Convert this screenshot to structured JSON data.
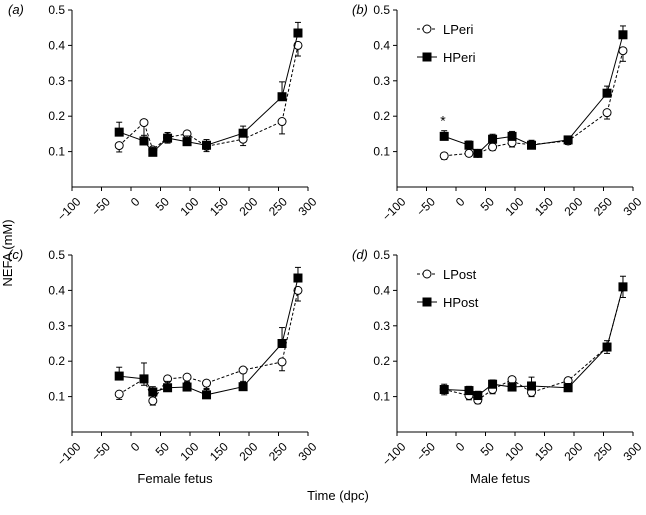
{
  "figure": {
    "ylabel": "NEFA (mM)",
    "xlabel": "Time (dpc)",
    "column_labels": [
      "Female fetus",
      "Male fetus"
    ]
  },
  "chart_data": [
    {
      "type": "line",
      "panel": "(a)",
      "ylim": [
        0,
        0.5
      ],
      "xlim": [
        -100,
        300
      ],
      "xticks": [
        -100,
        -50,
        0,
        50,
        100,
        150,
        200,
        250,
        300
      ],
      "yticks": [
        0.1,
        0.2,
        0.3,
        0.4,
        0.5
      ],
      "legend": null,
      "series": [
        {
          "marker": "open-circle",
          "dashed": true,
          "x": [
            -20,
            22,
            37,
            62,
            95,
            128,
            190,
            256,
            283
          ],
          "y": [
            0.117,
            0.182,
            0.105,
            0.14,
            0.15,
            0.115,
            0.135,
            0.185,
            0.4
          ],
          "err": [
            0.018,
            0.045,
            0.015,
            0.016,
            0.015,
            0.015,
            0.018,
            0.035,
            0.03
          ]
        },
        {
          "marker": "filled-square",
          "dashed": false,
          "x": [
            -20,
            22,
            37,
            62,
            95,
            128,
            190,
            256,
            283
          ],
          "y": [
            0.155,
            0.13,
            0.098,
            0.138,
            0.128,
            0.118,
            0.152,
            0.255,
            0.435
          ],
          "err": [
            0.028,
            0.016,
            0.014,
            0.016,
            0.016,
            0.016,
            0.02,
            0.042,
            0.03
          ]
        }
      ]
    },
    {
      "type": "line",
      "panel": "(b)",
      "ylim": [
        0,
        0.5
      ],
      "xlim": [
        -100,
        300
      ],
      "xticks": [
        -100,
        -50,
        0,
        50,
        100,
        150,
        200,
        250,
        300
      ],
      "yticks": [
        0.1,
        0.2,
        0.3,
        0.4,
        0.5
      ],
      "legend": [
        "LPeri",
        "HPeri"
      ],
      "annotation": {
        "text": "*",
        "x": -22,
        "y": 0.19
      },
      "series": [
        {
          "name": "LPeri",
          "marker": "open-circle",
          "dashed": true,
          "x": [
            -20,
            22,
            37,
            62,
            95,
            128,
            190,
            256,
            283
          ],
          "y": [
            0.088,
            0.095,
            0.095,
            0.113,
            0.125,
            0.12,
            0.13,
            0.21,
            0.385
          ],
          "err": [
            0.01,
            0.008,
            0.008,
            0.01,
            0.012,
            0.012,
            0.01,
            0.018,
            0.03
          ]
        },
        {
          "name": "HPeri",
          "marker": "filled-square",
          "dashed": false,
          "x": [
            -20,
            22,
            37,
            62,
            95,
            128,
            190,
            256,
            283
          ],
          "y": [
            0.143,
            0.118,
            0.095,
            0.135,
            0.143,
            0.118,
            0.133,
            0.265,
            0.43
          ],
          "err": [
            0.016,
            0.012,
            0.008,
            0.014,
            0.014,
            0.014,
            0.01,
            0.02,
            0.025
          ]
        }
      ]
    },
    {
      "type": "line",
      "panel": "(c)",
      "ylim": [
        0,
        0.5
      ],
      "xlim": [
        -100,
        300
      ],
      "xticks": [
        -100,
        -50,
        0,
        50,
        100,
        150,
        200,
        250,
        300
      ],
      "yticks": [
        0.1,
        0.2,
        0.3,
        0.4,
        0.5
      ],
      "legend": null,
      "series": [
        {
          "marker": "open-circle",
          "dashed": true,
          "x": [
            -20,
            22,
            37,
            62,
            95,
            128,
            190,
            256,
            283
          ],
          "y": [
            0.107,
            0.15,
            0.088,
            0.15,
            0.155,
            0.138,
            0.175,
            0.198,
            0.4
          ],
          "err": [
            0.015,
            0.018,
            0.012,
            0.018,
            0.015,
            0.015,
            0.035,
            0.025,
            0.03
          ]
        },
        {
          "marker": "filled-square",
          "dashed": false,
          "x": [
            -20,
            22,
            37,
            62,
            95,
            128,
            190,
            256,
            283
          ],
          "y": [
            0.158,
            0.15,
            0.113,
            0.125,
            0.127,
            0.105,
            0.128,
            0.25,
            0.435
          ],
          "err": [
            0.025,
            0.045,
            0.015,
            0.018,
            0.015,
            0.015,
            0.015,
            0.045,
            0.03
          ]
        }
      ]
    },
    {
      "type": "line",
      "panel": "(d)",
      "ylim": [
        0,
        0.5
      ],
      "xlim": [
        -100,
        300
      ],
      "xticks": [
        -100,
        -50,
        0,
        50,
        100,
        150,
        200,
        250,
        300
      ],
      "yticks": [
        0.1,
        0.2,
        0.3,
        0.4,
        0.5
      ],
      "legend": [
        "LPost",
        "HPost"
      ],
      "series": [
        {
          "name": "LPost",
          "marker": "open-circle",
          "dashed": true,
          "x": [
            -20,
            22,
            37,
            62,
            95,
            128,
            190,
            256,
            283
          ],
          "y": [
            0.12,
            0.103,
            0.09,
            0.12,
            0.148,
            0.112,
            0.145,
            0.24,
            0.41
          ],
          "err": [
            0.015,
            0.012,
            0.01,
            0.012,
            0.012,
            0.012,
            0.012,
            0.018,
            0.03
          ]
        },
        {
          "name": "HPost",
          "marker": "filled-square",
          "dashed": false,
          "x": [
            -20,
            22,
            37,
            62,
            95,
            128,
            190,
            256,
            283
          ],
          "y": [
            0.12,
            0.117,
            0.103,
            0.135,
            0.127,
            0.13,
            0.125,
            0.24,
            0.41
          ],
          "err": [
            0.015,
            0.012,
            0.012,
            0.012,
            0.012,
            0.025,
            0.012,
            0.018,
            0.03
          ]
        }
      ]
    }
  ]
}
